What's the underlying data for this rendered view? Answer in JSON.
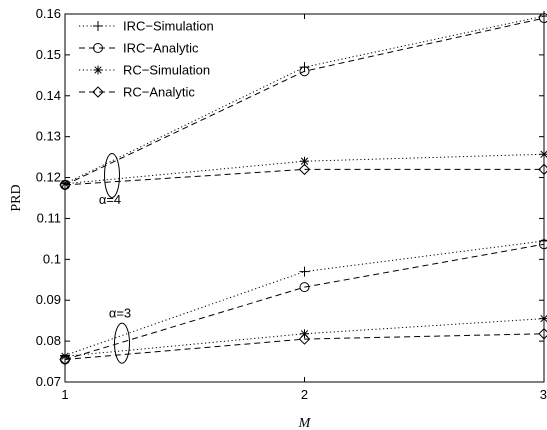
{
  "chart_data": {
    "type": "line",
    "xlabel": "M",
    "ylabel": "PRD",
    "xlim": [
      1,
      3
    ],
    "ylim": [
      0.07,
      0.16
    ],
    "xticks": [
      1,
      2,
      3
    ],
    "xtick_labels": [
      "1",
      "2",
      "3"
    ],
    "yticks": [
      0.07,
      0.08,
      0.09,
      0.1,
      0.11,
      0.12,
      0.13,
      0.14,
      0.15,
      0.16
    ],
    "ytick_labels": [
      "0.07",
      "0.08",
      "0.09",
      "0.1",
      "0.11",
      "0.12",
      "0.13",
      "0.14",
      "0.15",
      "0.16"
    ],
    "grid": false,
    "legend_position": "top-left",
    "groups": [
      {
        "label": "α=4",
        "series": [
          {
            "name": "IRC−Simulation",
            "style": "dotted",
            "marker": "plus",
            "x": [
              1,
              2,
              3
            ],
            "y": [
              0.1185,
              0.147,
              0.1595
            ]
          },
          {
            "name": "IRC−Analytic",
            "style": "dashed",
            "marker": "circle",
            "x": [
              1,
              2,
              3
            ],
            "y": [
              0.1182,
              0.146,
              0.159
            ]
          },
          {
            "name": "RC−Simulation",
            "style": "dotted",
            "marker": "star",
            "x": [
              1,
              2,
              3
            ],
            "y": [
              0.1185,
              0.124,
              0.1257
            ]
          },
          {
            "name": "RC−Analytic",
            "style": "dashed",
            "marker": "diamond",
            "x": [
              1,
              2,
              3
            ],
            "y": [
              0.1182,
              0.122,
              0.122
            ]
          }
        ]
      },
      {
        "label": "α=3",
        "series": [
          {
            "name": "IRC−Simulation",
            "style": "dotted",
            "marker": "plus",
            "x": [
              1,
              2,
              3
            ],
            "y": [
              0.0765,
              0.097,
              0.1045
            ]
          },
          {
            "name": "IRC−Analytic",
            "style": "dashed",
            "marker": "circle",
            "x": [
              1,
              2,
              3
            ],
            "y": [
              0.0755,
              0.0932,
              0.1037
            ]
          },
          {
            "name": "RC−Simulation",
            "style": "dotted",
            "marker": "star",
            "x": [
              1,
              2,
              3
            ],
            "y": [
              0.0763,
              0.0818,
              0.0855
            ]
          },
          {
            "name": "RC−Analytic",
            "style": "dashed",
            "marker": "diamond",
            "x": [
              1,
              2,
              3
            ],
            "y": [
              0.0755,
              0.0805,
              0.0818
            ]
          }
        ]
      }
    ],
    "legend": [
      {
        "name": "IRC−Simulation",
        "style": "dotted",
        "marker": "plus"
      },
      {
        "name": "IRC−Analytic",
        "style": "dashed",
        "marker": "circle"
      },
      {
        "name": "RC−Simulation",
        "style": "dotted",
        "marker": "star"
      },
      {
        "name": "RC−Analytic",
        "style": "dashed",
        "marker": "diamond"
      }
    ]
  }
}
